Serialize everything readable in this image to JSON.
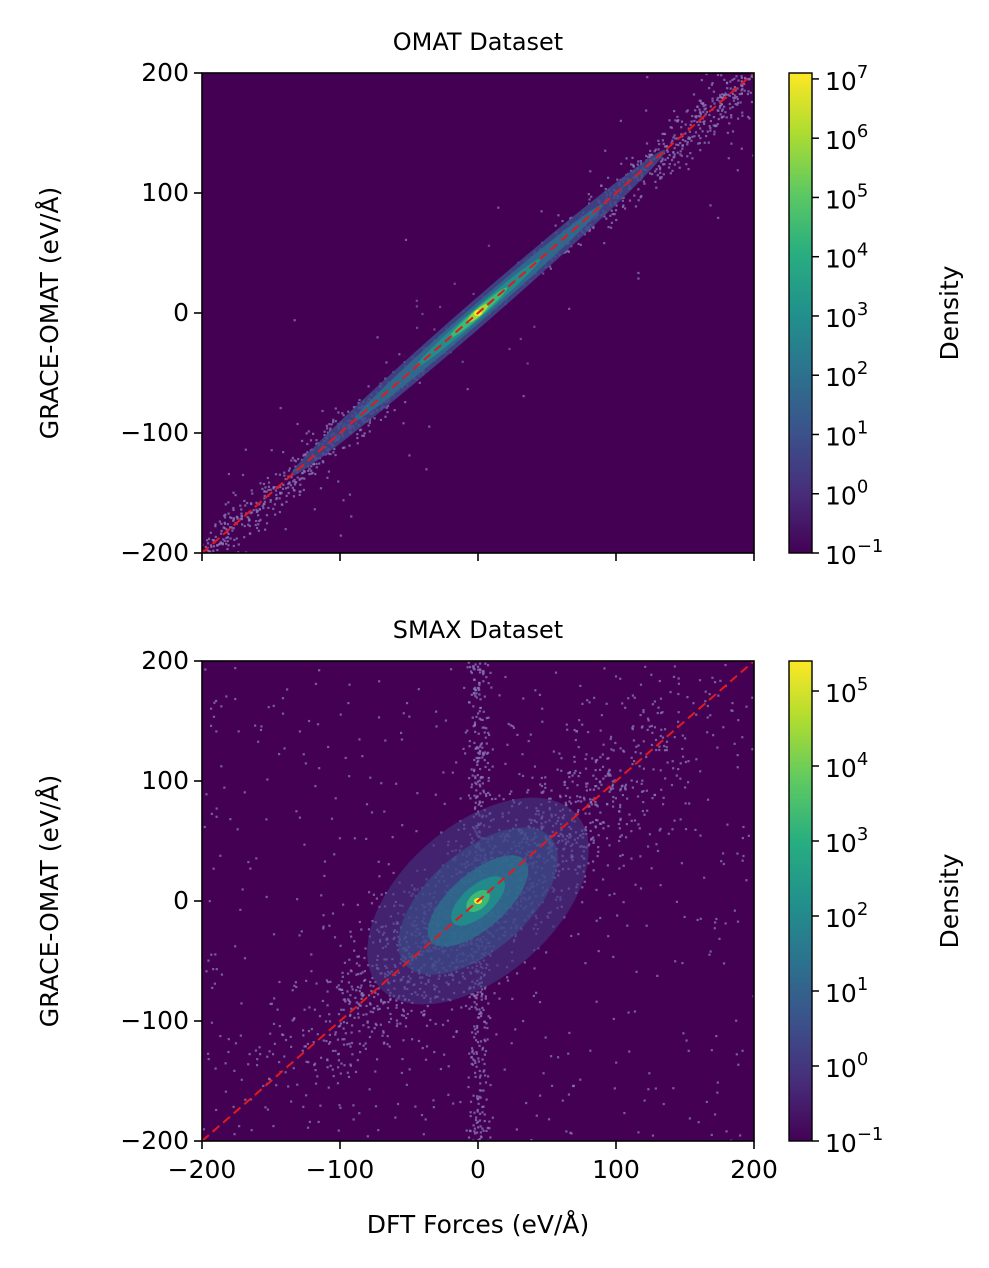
{
  "colors": {
    "background": "#440154",
    "identity_line": "#e31a1c",
    "axis": "#000000",
    "contour": "#7f6fb0"
  },
  "chart_data": [
    {
      "type": "heatmap",
      "title": "OMAT Dataset",
      "xlabel": "",
      "ylabel": "GRACE-OMAT (eV/Å)",
      "xlim": [
        -200,
        200
      ],
      "ylim": [
        -200,
        200
      ],
      "xticks": [
        -200,
        -100,
        0,
        100,
        200
      ],
      "xtick_labels_visible": false,
      "yticks": [
        200,
        100,
        0,
        -100,
        -200
      ],
      "ytick_labels": [
        "200",
        "100",
        "0",
        "−100",
        "−200"
      ],
      "identity_line": {
        "from": [
          -200,
          -200
        ],
        "to": [
          200,
          200
        ],
        "style": "dashed"
      },
      "density_spread": "narrow band along the identity line",
      "colorbar": {
        "label": "Density",
        "scale": "log",
        "min_exponent": -1,
        "max_exponent": 7.1,
        "ticks": [
          {
            "exp": 7,
            "base": "10",
            "sup": "7"
          },
          {
            "exp": 6,
            "base": "10",
            "sup": "6"
          },
          {
            "exp": 5,
            "base": "10",
            "sup": "5"
          },
          {
            "exp": 4,
            "base": "10",
            "sup": "4"
          },
          {
            "exp": 3,
            "base": "10",
            "sup": "3"
          },
          {
            "exp": 2,
            "base": "10",
            "sup": "2"
          },
          {
            "exp": 1,
            "base": "10",
            "sup": "1"
          },
          {
            "exp": 0,
            "base": "10",
            "sup": "0"
          },
          {
            "exp": -1,
            "base": "10",
            "sup": "−1"
          }
        ]
      }
    },
    {
      "type": "heatmap",
      "title": "SMAX Dataset",
      "xlabel": "DFT Forces (eV/Å)",
      "ylabel": "GRACE-OMAT (eV/Å)",
      "xlim": [
        -200,
        200
      ],
      "ylim": [
        -200,
        200
      ],
      "xticks": [
        -200,
        -100,
        0,
        100,
        200
      ],
      "xtick_labels": [
        "−200",
        "−100",
        "0",
        "100",
        "200"
      ],
      "xtick_labels_visible": true,
      "yticks": [
        200,
        100,
        0,
        -100,
        -200
      ],
      "ytick_labels": [
        "200",
        "100",
        "0",
        "−100",
        "−200"
      ],
      "identity_line": {
        "from": [
          -200,
          -200
        ],
        "to": [
          200,
          200
        ],
        "style": "dashed"
      },
      "density_spread": "wide cloud around the identity line with a vertical streak at x = 0",
      "colorbar": {
        "label": "Density",
        "scale": "log",
        "min_exponent": -1,
        "max_exponent": 5.4,
        "ticks": [
          {
            "exp": 5,
            "base": "10",
            "sup": "5"
          },
          {
            "exp": 4,
            "base": "10",
            "sup": "4"
          },
          {
            "exp": 3,
            "base": "10",
            "sup": "3"
          },
          {
            "exp": 2,
            "base": "10",
            "sup": "2"
          },
          {
            "exp": 1,
            "base": "10",
            "sup": "1"
          },
          {
            "exp": 0,
            "base": "10",
            "sup": "0"
          },
          {
            "exp": -1,
            "base": "10",
            "sup": "−1"
          }
        ]
      }
    }
  ]
}
